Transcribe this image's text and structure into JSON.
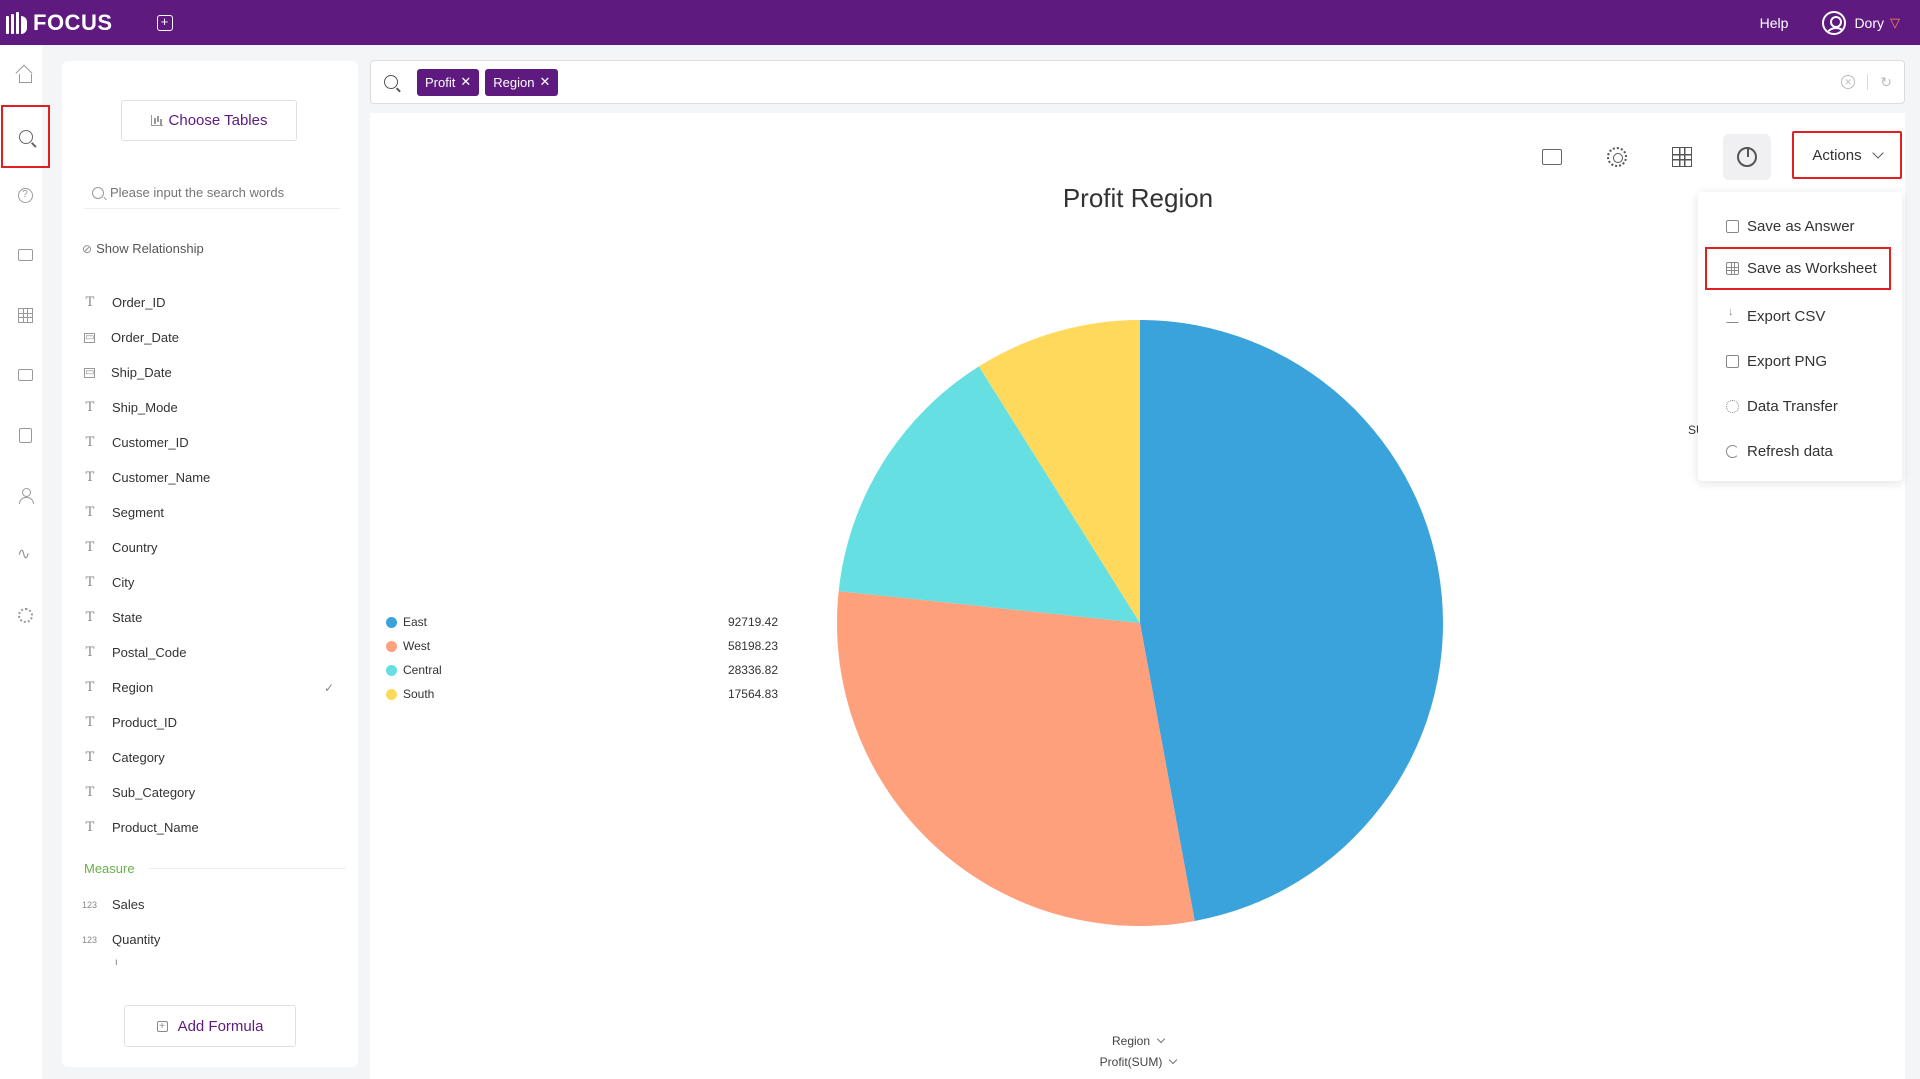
{
  "header": {
    "logo_text": "FOCUS",
    "help_label": "Help",
    "user_name": "Dory"
  },
  "rail": {
    "items": [
      "home-icon",
      "search-icon",
      "question-icon",
      "board-icon",
      "grid-icon",
      "folder-icon",
      "clipboard-icon",
      "user-icon",
      "pulse-icon",
      "gear-icon"
    ],
    "active_index": 1
  },
  "fields_panel": {
    "choose_tables_label": "Choose Tables",
    "search_placeholder": "Please input the search words",
    "show_relationship_label": "Show Relationship",
    "attributes": [
      {
        "name": "Order_ID",
        "type": "text"
      },
      {
        "name": "Order_Date",
        "type": "date"
      },
      {
        "name": "Ship_Date",
        "type": "date"
      },
      {
        "name": "Ship_Mode",
        "type": "text"
      },
      {
        "name": "Customer_ID",
        "type": "text"
      },
      {
        "name": "Customer_Name",
        "type": "text"
      },
      {
        "name": "Segment",
        "type": "text"
      },
      {
        "name": "Country",
        "type": "text"
      },
      {
        "name": "City",
        "type": "text"
      },
      {
        "name": "State",
        "type": "text"
      },
      {
        "name": "Postal_Code",
        "type": "text"
      },
      {
        "name": "Region",
        "type": "text",
        "checked": true
      },
      {
        "name": "Product_ID",
        "type": "text"
      },
      {
        "name": "Category",
        "type": "text"
      },
      {
        "name": "Sub_Category",
        "type": "text"
      },
      {
        "name": "Product_Name",
        "type": "text"
      }
    ],
    "measure_header": "Measure",
    "measures": [
      {
        "name": "Sales",
        "type_label": "123"
      },
      {
        "name": "Quantity",
        "type_label": "123"
      }
    ],
    "add_formula_label": "Add Formula"
  },
  "search_bar": {
    "tokens": [
      "Profit",
      "Region"
    ]
  },
  "toolbar": {
    "actions_label": "Actions"
  },
  "actions_menu": {
    "items": [
      {
        "label": "Save as Answer",
        "icon": "save-icon"
      },
      {
        "label": "Save as Worksheet",
        "icon": "worksheet-icon",
        "highlighted": true
      },
      {
        "label": "Export CSV",
        "icon": "download-icon"
      },
      {
        "label": "Export PNG",
        "icon": "image-icon"
      },
      {
        "label": "Data Transfer",
        "icon": "gear-icon"
      },
      {
        "label": "Refresh data",
        "icon": "refresh-icon"
      }
    ]
  },
  "side_label_partial": "SU",
  "chart_data": {
    "type": "pie",
    "title": "Profit Region",
    "categories": [
      "East",
      "West",
      "Central",
      "South"
    ],
    "values": [
      92719.42,
      58198.23,
      28336.82,
      17564.83
    ],
    "value_labels": [
      "92719.42",
      "58198.23",
      "28336.82",
      "17564.83"
    ],
    "colors": [
      "#3aa3db",
      "#ffa07c",
      "#66dfe2",
      "#ffd95c"
    ],
    "legend_position": "left",
    "x_axis_select": "Region",
    "y_axis_select": "Profit(SUM)"
  }
}
